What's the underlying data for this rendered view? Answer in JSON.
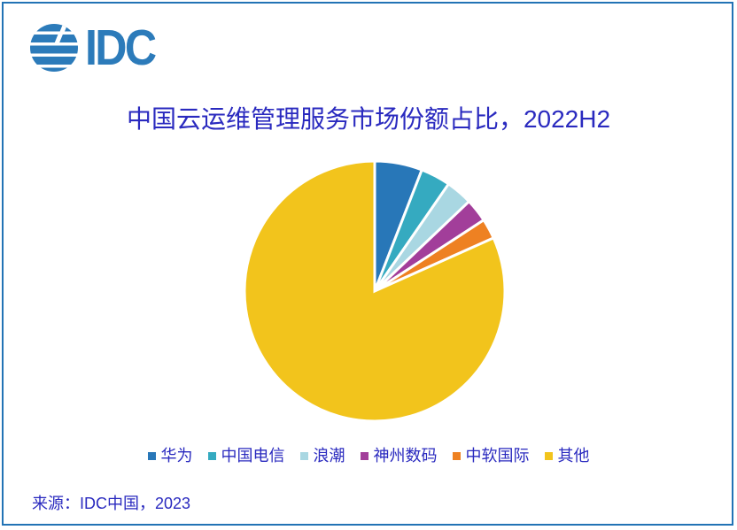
{
  "frame": {
    "border_color": "#2273B5"
  },
  "logo": {
    "text": "IDC",
    "color": "#2C7BBA"
  },
  "title": {
    "text": "中国云运维管理服务市场份额占比，2022H2",
    "color": "#2A2ABF"
  },
  "source": {
    "text": "来源：IDC中国，2023"
  },
  "chart_data": {
    "type": "pie",
    "title": "中国云运维管理服务市场份额占比，2022H2",
    "categories": [
      "华为",
      "中国电信",
      "浪潮",
      "神州数码",
      "中软国际",
      "其他"
    ],
    "values": [
      5.9,
      3.7,
      3.3,
      2.9,
      2.5,
      81.7
    ],
    "values_note": "market share % estimated from slice angles; no numeric labels shown in the image",
    "colors": [
      "#2877B8",
      "#35AAC0",
      "#A9D7E2",
      "#A23E9A",
      "#EE8122",
      "#F2C41C"
    ],
    "start_angle_deg": 0,
    "direction": "clockwise",
    "slice_separator_color": "#FFFFFF",
    "legend_position": "bottom",
    "grid": false
  }
}
